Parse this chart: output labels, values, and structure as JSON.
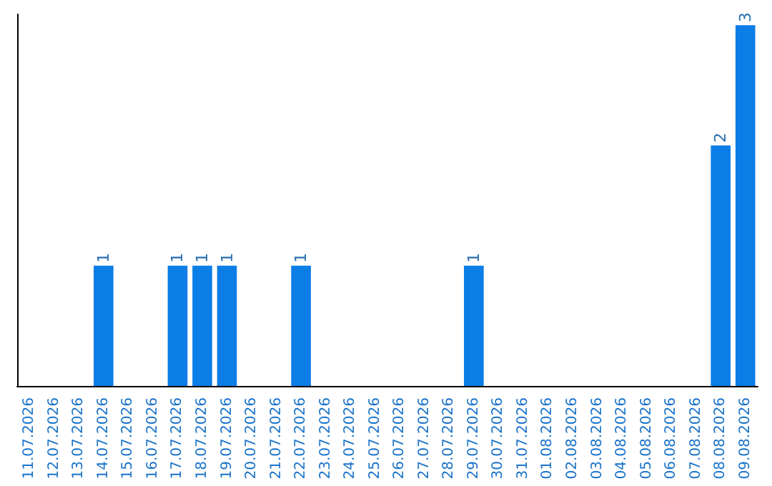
{
  "chart_data": {
    "type": "bar",
    "categories": [
      "11.07.2026",
      "12.07.2026",
      "13.07.2026",
      "14.07.2026",
      "15.07.2026",
      "16.07.2026",
      "17.07.2026",
      "18.07.2026",
      "19.07.2026",
      "20.07.2026",
      "21.07.2026",
      "22.07.2026",
      "23.07.2026",
      "24.07.2026",
      "25.07.2026",
      "26.07.2026",
      "27.07.2026",
      "28.07.2026",
      "29.07.2026",
      "30.07.2026",
      "31.07.2026",
      "01.08.2026",
      "02.08.2026",
      "03.08.2026",
      "04.08.2026",
      "05.08.2026",
      "06.08.2026",
      "07.08.2026",
      "08.08.2026",
      "09.08.2026"
    ],
    "values": [
      0,
      0,
      0,
      1,
      0,
      0,
      1,
      1,
      1,
      0,
      0,
      1,
      0,
      0,
      0,
      0,
      0,
      0,
      1,
      0,
      0,
      0,
      0,
      0,
      0,
      0,
      0,
      0,
      2,
      3
    ],
    "value_labels": [
      null,
      null,
      null,
      "1",
      null,
      null,
      "1",
      "1",
      "1",
      null,
      null,
      "1",
      null,
      null,
      null,
      null,
      null,
      null,
      "1",
      null,
      null,
      null,
      null,
      null,
      null,
      null,
      null,
      null,
      "2",
      "3"
    ],
    "color": "#0a7de6",
    "grid": false,
    "tick_labels": "x"
  }
}
